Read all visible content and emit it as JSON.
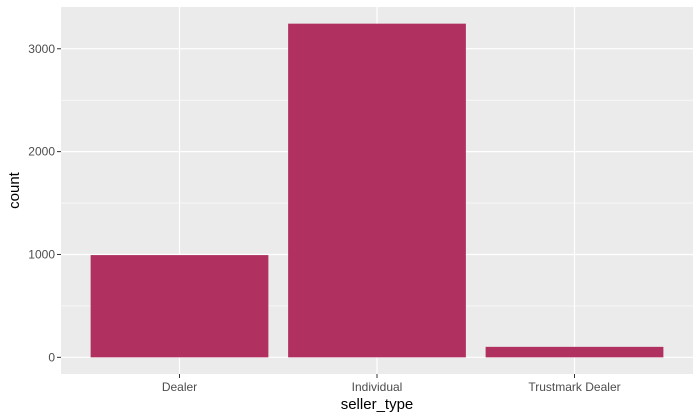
{
  "chart_data": {
    "type": "bar",
    "categories": [
      "Dealer",
      "Individual",
      "Trustmark Dealer"
    ],
    "values": [
      994,
      3244,
      102
    ],
    "xlabel": "seller_type",
    "ylabel": "count",
    "ylim": [
      -162,
      3406
    ],
    "yticks": [
      0,
      1000,
      2000,
      3000
    ],
    "ytick_labels": [
      "0",
      "1000",
      "2000",
      "3000"
    ],
    "grid": true,
    "legend": "none",
    "colors": {
      "bar": "#b03060",
      "panel": "#ebebeb",
      "grid": "#ffffff",
      "tick_text": "#4d4d4d",
      "title_text": "#000000"
    }
  }
}
